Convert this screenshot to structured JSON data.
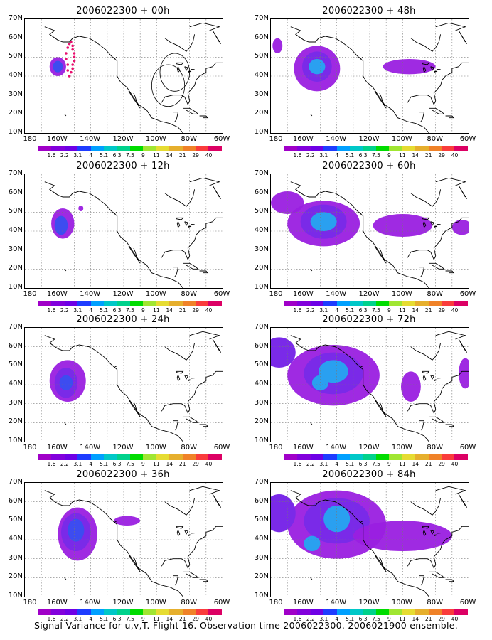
{
  "caption": "Signal Variance for u,v,T. Flight 16. Observation time 2006022300. 2006021900 ensemble.",
  "y_ticks": [
    "70N",
    "60N",
    "50N",
    "40N",
    "30N",
    "20N",
    "10N"
  ],
  "x_ticks": [
    "180",
    "160W",
    "140W",
    "120W",
    "100W",
    "80W",
    "60W"
  ],
  "colorbar": {
    "labels": [
      "1.6",
      "2.2",
      "3.1",
      "4",
      "5.1",
      "6.3",
      "7.5",
      "9",
      "11",
      "14",
      "21",
      "29",
      "40"
    ],
    "colors": [
      "#a000c8",
      "#8200dc",
      "#6e00e6",
      "#1e3cff",
      "#00a0ff",
      "#00c8c8",
      "#00d28c",
      "#00dc00",
      "#a0e632",
      "#e6dc32",
      "#e6af2d",
      "#f08228",
      "#fa3c3c",
      "#dc0064"
    ]
  },
  "panels": [
    {
      "title": "2006022300 + 00h",
      "lead": "00h"
    },
    {
      "title": "2006022300 + 48h",
      "lead": "48h"
    },
    {
      "title": "2006022300 + 12h",
      "lead": "12h"
    },
    {
      "title": "2006022300 + 60h",
      "lead": "60h"
    },
    {
      "title": "2006022300 + 24h",
      "lead": "24h"
    },
    {
      "title": "2006022300 + 72h",
      "lead": "72h"
    },
    {
      "title": "2006022300 + 36h",
      "lead": "36h"
    },
    {
      "title": "2006022300 + 84h",
      "lead": "84h"
    }
  ]
}
